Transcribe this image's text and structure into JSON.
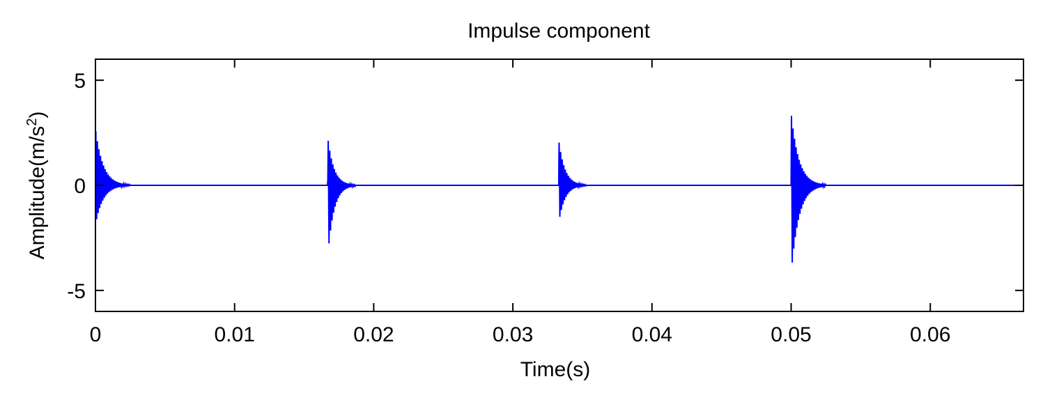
{
  "chart_data": {
    "type": "line",
    "title": "Impulse component",
    "xlabel": "Time(s)",
    "ylabel": "Amplitude(m/s",
    "ylabel_sup": "2",
    "ylabel_end": ")",
    "xlim": [
      0,
      0.0667
    ],
    "ylim": [
      -6,
      6
    ],
    "xticks": [
      0,
      0.01,
      0.02,
      0.03,
      0.04,
      0.05,
      0.06
    ],
    "xtick_labels": [
      "0",
      "0.01",
      "0.02",
      "0.03",
      "0.04",
      "0.05",
      "0.06"
    ],
    "yticks": [
      5,
      0,
      -5
    ],
    "ytick_labels": [
      "5",
      "0",
      "-5"
    ],
    "grid": false,
    "line_color": "#0000ff",
    "series": [
      {
        "impulses": [
          {
            "t0": 0.0,
            "peak": 3.6,
            "trough": -2.5,
            "decay_s": 0.0025
          },
          {
            "t0": 0.0167,
            "peak": 2.3,
            "trough": -3.4,
            "decay_s": 0.002
          },
          {
            "t0": 0.0333,
            "peak": 3.0,
            "trough": -2.5,
            "decay_s": 0.002
          },
          {
            "t0": 0.05,
            "peak": 3.5,
            "trough": -4.3,
            "decay_s": 0.0025
          }
        ]
      }
    ]
  }
}
